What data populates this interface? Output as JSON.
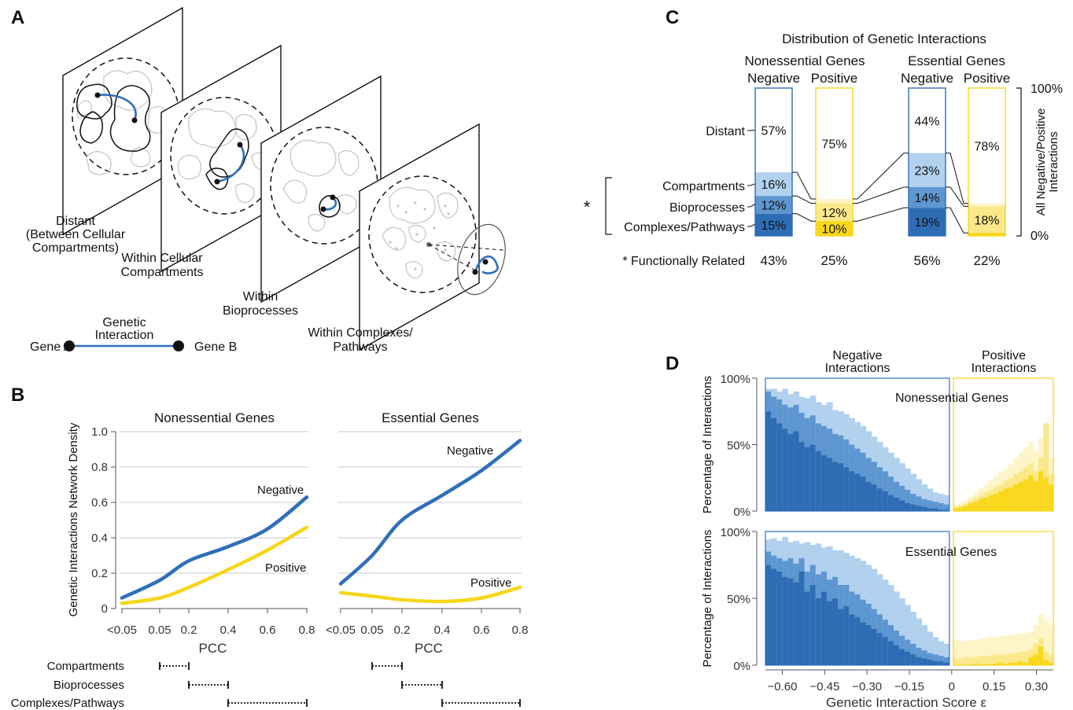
{
  "panel_labels": {
    "a": "A",
    "b": "B",
    "c": "C",
    "d": "D"
  },
  "colors": {
    "neg_dark": "#2e6db4",
    "neg_mid": "#5e96d1",
    "neg_light": "#b1d1ee",
    "pos_dark": "#f9d71c",
    "pos_mid": "#fbe88a",
    "pos_light": "#fdf5c8",
    "neg_line": "#2f6fba",
    "pos_line": "#f7d61b"
  },
  "panelA": {
    "planes": [
      {
        "label_lines": [
          "Distant",
          "(Between Cellular",
          "Compartments)"
        ]
      },
      {
        "label_lines": [
          "Within Cellular",
          "Compartments"
        ]
      },
      {
        "label_lines": [
          "Within",
          "Bioprocesses"
        ]
      },
      {
        "label_lines": [
          "Within Complexes/",
          "Pathways"
        ]
      }
    ],
    "legend": {
      "gene_a": "Gene A",
      "gene_b": "Gene B",
      "interaction_lines": [
        "Genetic",
        "Interaction"
      ]
    }
  },
  "chart_data": [
    {
      "id": "B-nonessential",
      "type": "line",
      "title": "Nonessential Genes",
      "xlabel": "PCC",
      "ylabel": "Genetic Interactions Network Density",
      "x_ticks": [
        "<0.05",
        "0.05",
        "0.2",
        "0.4",
        "0.6",
        "0.8"
      ],
      "y_ticks": [
        "0",
        "0.2",
        "0.4",
        "0.6",
        "0.8",
        "1.0"
      ],
      "ylim": [
        0,
        1.0
      ],
      "grid": true,
      "series": [
        {
          "name": "Negative",
          "color_key": "neg_line",
          "values": [
            0.06,
            0.16,
            0.27,
            0.35,
            0.45,
            0.63
          ]
        },
        {
          "name": "Positive",
          "color_key": "pos_line",
          "values": [
            0.03,
            0.06,
            0.12,
            0.22,
            0.33,
            0.46
          ]
        }
      ],
      "ranges": [
        {
          "label": "Compartments",
          "from": 1,
          "to": 2
        },
        {
          "label": "Bioprocesses",
          "from": 2,
          "to": 3
        },
        {
          "label": "Complexes/Pathways",
          "from": 3,
          "to": 5
        }
      ]
    },
    {
      "id": "B-essential",
      "type": "line",
      "title": "Essential Genes",
      "xlabel": "PCC",
      "x_ticks": [
        "<0.05",
        "0.05",
        "0.2",
        "0.4",
        "0.6",
        "0.8"
      ],
      "ylim": [
        0,
        1.0
      ],
      "grid": true,
      "series": [
        {
          "name": "Negative",
          "color_key": "neg_line",
          "values": [
            0.14,
            0.3,
            0.5,
            0.64,
            0.78,
            0.95
          ]
        },
        {
          "name": "Positive",
          "color_key": "pos_line",
          "values": [
            0.09,
            0.07,
            0.05,
            0.04,
            0.06,
            0.12
          ]
        }
      ],
      "ranges": [
        {
          "from": 1,
          "to": 2
        },
        {
          "from": 2,
          "to": 3
        },
        {
          "from": 3,
          "to": 5
        }
      ]
    },
    {
      "id": "C",
      "type": "bar",
      "title": "Distribution of Genetic Interactions",
      "groups": [
        "Nonessential Genes",
        "Essential Genes"
      ],
      "bar_labels": [
        "Negative",
        "Positive",
        "Negative",
        "Positive"
      ],
      "categories": [
        "Distant",
        "Compartments",
        "Bioprocesses",
        "Complexes/Pathways"
      ],
      "related_bracket": "*",
      "functionally_related_label": "* Functionally Related",
      "right_axis": {
        "label_lines": [
          "All Negative/Positive",
          "Interactions"
        ],
        "top": "100%",
        "bottom": "0%"
      },
      "bars": [
        {
          "group": "Nonessential Genes",
          "sign": "Negative",
          "values": [
            57,
            16,
            12,
            15
          ],
          "labels": [
            "57%",
            "16%",
            "12%",
            "15%"
          ],
          "functionally_related": "43%"
        },
        {
          "group": "Nonessential Genes",
          "sign": "Positive",
          "values": [
            75,
            3,
            12,
            10
          ],
          "labels": [
            "75%",
            "",
            "12%",
            "10%"
          ],
          "functionally_related": "25%"
        },
        {
          "group": "Essential Genes",
          "sign": "Negative",
          "values": [
            44,
            23,
            14,
            19
          ],
          "labels": [
            "44%",
            "23%",
            "14%",
            "19%"
          ],
          "functionally_related": "56%"
        },
        {
          "group": "Essential Genes",
          "sign": "Positive",
          "values": [
            78,
            2,
            18,
            2
          ],
          "labels": [
            "78%",
            "",
            "18%",
            ""
          ],
          "functionally_related": "22%"
        }
      ]
    },
    {
      "id": "D",
      "type": "bar",
      "stacked": true,
      "xlabel": "Genetic Interaction Score ε",
      "ylabel": "Percentage of Interactions",
      "x_ticks": [
        "-0.60",
        "-0.45",
        "-0.30",
        "-0.15",
        "0",
        "0.15",
        "0.30"
      ],
      "xlim": [
        -0.66,
        0.36
      ],
      "y_ticks": [
        "0%",
        "50%",
        "100%"
      ],
      "column_headers": [
        [
          "Negative",
          "Interactions"
        ],
        [
          "Positive",
          "Interactions"
        ]
      ],
      "bin_width": 0.02,
      "neg_bin_start": -0.66,
      "pos_bin_start": 0.0,
      "panels": [
        {
          "name": "Nonessential Genes",
          "negative": {
            "dark": [
              0.75,
              0.7,
              0.66,
              0.62,
              0.58,
              0.6,
              0.52,
              0.48,
              0.5,
              0.45,
              0.42,
              0.4,
              0.37,
              0.36,
              0.33,
              0.3,
              0.28,
              0.26,
              0.22,
              0.2,
              0.17,
              0.15,
              0.12,
              0.1,
              0.08,
              0.06,
              0.05,
              0.04,
              0.03,
              0.02,
              0.02,
              0.01,
              0.01
            ],
            "mid": [
              0.9,
              0.86,
              0.84,
              0.8,
              0.78,
              0.8,
              0.74,
              0.7,
              0.72,
              0.66,
              0.64,
              0.62,
              0.58,
              0.57,
              0.54,
              0.5,
              0.47,
              0.44,
              0.4,
              0.37,
              0.33,
              0.3,
              0.26,
              0.22,
              0.19,
              0.16,
              0.13,
              0.11,
              0.09,
              0.08,
              0.07,
              0.06,
              0.05
            ],
            "light": [
              0.92,
              0.92,
              0.9,
              0.92,
              0.88,
              0.9,
              0.86,
              0.85,
              0.87,
              0.82,
              0.8,
              0.82,
              0.76,
              0.75,
              0.73,
              0.7,
              0.67,
              0.64,
              0.6,
              0.56,
              0.52,
              0.48,
              0.44,
              0.4,
              0.36,
              0.32,
              0.28,
              0.24,
              0.2,
              0.17,
              0.14,
              0.13,
              0.12
            ]
          },
          "positive": {
            "dark": [
              0.02,
              0.03,
              0.04,
              0.06,
              0.07,
              0.09,
              0.1,
              0.12,
              0.13,
              0.15,
              0.17,
              0.18,
              0.2,
              0.22,
              0.24,
              0.27,
              0.22,
              0.3,
              0.25,
              0.2
            ],
            "mid": [
              0.03,
              0.04,
              0.06,
              0.08,
              0.1,
              0.12,
              0.14,
              0.16,
              0.18,
              0.2,
              0.23,
              0.25,
              0.28,
              0.3,
              0.33,
              0.36,
              0.3,
              0.4,
              0.66,
              0.28
            ],
            "light": [
              0.05,
              0.06,
              0.08,
              0.11,
              0.14,
              0.17,
              0.2,
              0.23,
              0.26,
              0.29,
              0.32,
              0.35,
              0.4,
              0.44,
              0.48,
              0.52,
              0.45,
              0.55,
              0.66,
              0.4
            ]
          }
        },
        {
          "name": "Essential Genes",
          "negative": {
            "dark": [
              0.75,
              0.72,
              0.7,
              0.66,
              0.65,
              0.62,
              0.7,
              0.55,
              0.6,
              0.5,
              0.55,
              0.48,
              0.5,
              0.42,
              0.44,
              0.38,
              0.36,
              0.32,
              0.3,
              0.27,
              0.24,
              0.21,
              0.18,
              0.15,
              0.12,
              0.1,
              0.08,
              0.06,
              0.05,
              0.04,
              0.03,
              0.03,
              0.02
            ],
            "mid": [
              0.85,
              0.82,
              0.8,
              0.78,
              0.8,
              0.76,
              0.8,
              0.7,
              0.75,
              0.68,
              0.7,
              0.64,
              0.66,
              0.6,
              0.6,
              0.55,
              0.53,
              0.49,
              0.46,
              0.42,
              0.38,
              0.34,
              0.3,
              0.26,
              0.22,
              0.19,
              0.16,
              0.13,
              0.11,
              0.09,
              0.08,
              0.07,
              0.06
            ],
            "light": [
              0.94,
              0.95,
              0.93,
              0.96,
              0.92,
              0.93,
              0.91,
              0.92,
              0.9,
              0.91,
              0.88,
              0.89,
              0.86,
              0.86,
              0.84,
              0.82,
              0.8,
              0.78,
              0.75,
              0.72,
              0.68,
              0.64,
              0.6,
              0.55,
              0.5,
              0.45,
              0.4,
              0.35,
              0.3,
              0.25,
              0.21,
              0.18,
              0.16
            ]
          },
          "positive": {
            "dark": [
              0.0,
              0.0,
              0.0,
              0.0,
              0.01,
              0.0,
              0.01,
              0.01,
              0.01,
              0.02,
              0.01,
              0.02,
              0.02,
              0.03,
              0.02,
              0.06,
              0.08,
              0.14,
              0.04,
              0.02
            ],
            "mid": [
              0.05,
              0.05,
              0.06,
              0.06,
              0.06,
              0.07,
              0.07,
              0.07,
              0.08,
              0.08,
              0.08,
              0.09,
              0.09,
              0.1,
              0.1,
              0.12,
              0.16,
              0.2,
              0.1,
              0.08
            ],
            "light": [
              0.19,
              0.18,
              0.18,
              0.19,
              0.19,
              0.2,
              0.2,
              0.21,
              0.21,
              0.22,
              0.22,
              0.23,
              0.23,
              0.24,
              0.24,
              0.25,
              0.3,
              0.38,
              0.34,
              0.3
            ]
          }
        }
      ]
    }
  ]
}
